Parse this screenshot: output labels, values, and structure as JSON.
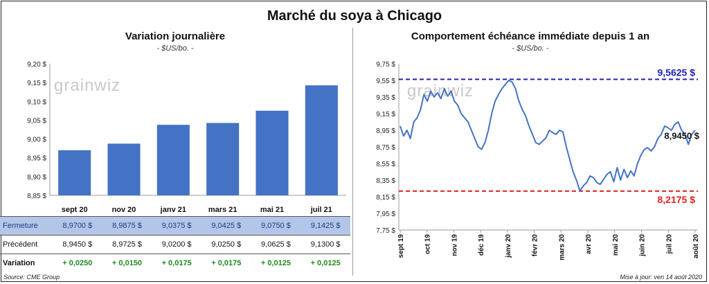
{
  "title": "Marché du soya à Chicago",
  "left_panel": {
    "subtitle": "Variation journalière",
    "units": "- $US/bo. -",
    "watermark": "grainwiz"
  },
  "right_panel": {
    "subtitle": "Comportement  échéance immédiate depuis 1 an",
    "units": "- $US/bo. -",
    "watermark": "grainwiz"
  },
  "footer": {
    "source": "Source: CME Group",
    "updated": "Mise à jour: ven 14 août 2020"
  },
  "colors": {
    "bar": "#4472c4",
    "line": "#4472c4",
    "high": "#1f1fb4",
    "low": "#e02020",
    "variation": "#1f8a1f"
  },
  "table": {
    "rows": [
      {
        "label": "Fermeture",
        "values": [
          "8,9700  $",
          "8,9875  $",
          "9,0375  $",
          "9,0425  $",
          "9,0750  $",
          "9,1425  $"
        ]
      },
      {
        "label": "Précédent",
        "values": [
          "8,9450  $",
          "8,9725  $",
          "9,0200  $",
          "9,0250  $",
          "9,0625  $",
          "9,1300  $"
        ]
      },
      {
        "label": "Variation",
        "values": [
          "+ 0,0250",
          "+ 0,0150",
          "+ 0,0175",
          "+ 0,0175",
          "+ 0,0125",
          "+ 0,0125"
        ]
      }
    ]
  },
  "chart_data": [
    {
      "type": "bar",
      "categories": [
        "sept 20",
        "nov 20",
        "janv 21",
        "mars 21",
        "mai 21",
        "juil 21"
      ],
      "values": [
        8.97,
        8.9875,
        9.0375,
        9.0425,
        9.075,
        9.1425
      ],
      "ylim": [
        8.85,
        9.2
      ],
      "yticks": [
        "8,85 $",
        "8,90 $",
        "8,95 $",
        "9,00 $",
        "9,05 $",
        "9,10 $",
        "9,15 $",
        "9,20 $"
      ],
      "ytick_values": [
        8.85,
        8.9,
        8.95,
        9.0,
        9.05,
        9.1,
        9.15,
        9.2
      ],
      "grid": false
    },
    {
      "type": "line",
      "ylim": [
        7.75,
        9.75
      ],
      "yticks": [
        "7,75 $",
        "7,95 $",
        "8,15 $",
        "8,35 $",
        "8,55 $",
        "8,75 $",
        "8,95 $",
        "9,15 $",
        "9,35 $",
        "9,55 $",
        "9,75 $"
      ],
      "ytick_values": [
        7.75,
        7.95,
        8.15,
        8.35,
        8.55,
        8.75,
        8.95,
        9.15,
        9.35,
        9.55,
        9.75
      ],
      "xticks": [
        "sept 19",
        "oct 19",
        "nov 19",
        "déc 19",
        "janv 20",
        "févr 20",
        "mars 20",
        "avr 20",
        "mai 20",
        "juin 20",
        "juil 20",
        "août 20"
      ],
      "high": {
        "value": 9.5625,
        "label": "9,5625  $"
      },
      "low": {
        "value": 8.2175,
        "label": "8,2175  $"
      },
      "last": {
        "value": 8.945,
        "label": "8,9450 $"
      },
      "grid": false,
      "series": [
        {
          "values": [
            9.0,
            8.88,
            8.95,
            8.85,
            9.05,
            9.1,
            9.2,
            9.38,
            9.3,
            9.42,
            9.35,
            9.4,
            9.33,
            9.45,
            9.36,
            9.42,
            9.3,
            9.25,
            9.15,
            9.1,
            9.05,
            8.95,
            8.85,
            8.75,
            8.72,
            8.8,
            8.95,
            9.15,
            9.3,
            9.38,
            9.45,
            9.5,
            9.55,
            9.53,
            9.45,
            9.3,
            9.2,
            9.12,
            9.0,
            8.9,
            8.8,
            8.78,
            8.82,
            8.86,
            8.95,
            8.92,
            8.9,
            8.95,
            8.93,
            8.75,
            8.6,
            8.45,
            8.35,
            8.22,
            8.28,
            8.32,
            8.4,
            8.38,
            8.32,
            8.3,
            8.36,
            8.42,
            8.45,
            8.33,
            8.5,
            8.35,
            8.48,
            8.38,
            8.46,
            8.4,
            8.55,
            8.65,
            8.72,
            8.74,
            8.7,
            8.75,
            8.85,
            8.9,
            9.0,
            8.98,
            8.95,
            9.02,
            9.05,
            8.95,
            8.9,
            8.78,
            8.9,
            8.95
          ]
        }
      ]
    }
  ]
}
